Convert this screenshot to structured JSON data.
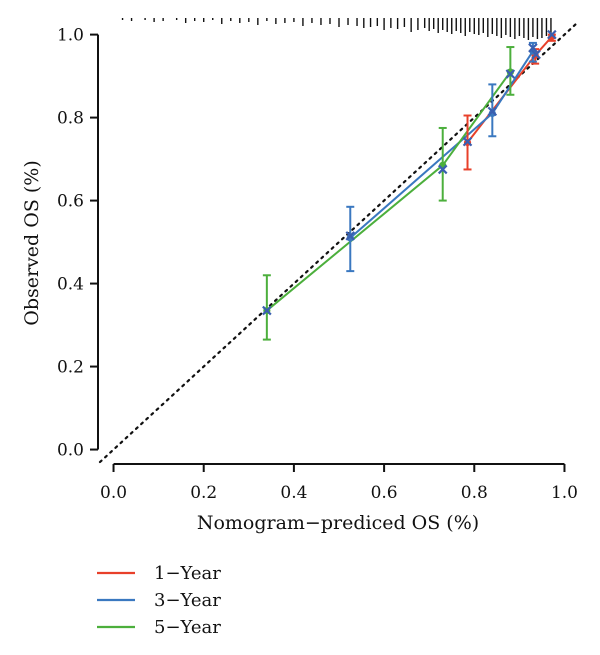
{
  "chart_data": {
    "type": "line",
    "xlabel": "Nomogram−prediced OS (%)",
    "ylabel": "Observed OS (%)",
    "xlim": [
      -0.03,
      1.03
    ],
    "ylim": [
      -0.03,
      1.04
    ],
    "x_ticks": [
      "0.0",
      "0.2",
      "0.4",
      "0.6",
      "0.8",
      "1.0"
    ],
    "y_ticks": [
      "0.0",
      "0.2",
      "0.4",
      "0.6",
      "0.8",
      "1.0"
    ],
    "grid": false,
    "legend_position": "bottom-left",
    "reference_line": {
      "style": "dotted",
      "from": [
        -0.03,
        -0.03
      ],
      "to": [
        1.03,
        1.03
      ],
      "color": "#111111"
    },
    "series": [
      {
        "name": "1−Year",
        "color": "#e8402a",
        "points": [
          {
            "x": 0.785,
            "y": 0.74,
            "low": 0.675,
            "high": 0.805,
            "marker": "circle"
          },
          {
            "x": 0.935,
            "y": 0.95,
            "low": 0.93,
            "high": 0.965,
            "marker": "circle"
          },
          {
            "x": 0.972,
            "y": 0.995,
            "low": 0.985,
            "high": 1.0,
            "marker": "circle"
          }
        ]
      },
      {
        "name": "3−Year",
        "color": "#3a78c0",
        "points": [
          {
            "x": 0.525,
            "y": 0.51,
            "low": 0.43,
            "high": 0.585,
            "marker": "circle"
          },
          {
            "x": 0.84,
            "y": 0.81,
            "low": 0.755,
            "high": 0.88,
            "marker": "circle"
          },
          {
            "x": 0.93,
            "y": 0.96,
            "low": 0.935,
            "high": 0.98,
            "marker": "circle"
          }
        ]
      },
      {
        "name": "5−Year",
        "color": "#4caf3c",
        "points": [
          {
            "x": 0.34,
            "y": 0.335,
            "low": 0.265,
            "high": 0.42,
            "marker": "circle"
          },
          {
            "x": 0.73,
            "y": 0.685,
            "low": 0.6,
            "high": 0.775,
            "marker": "circle"
          },
          {
            "x": 0.88,
            "y": 0.91,
            "low": 0.855,
            "high": 0.97,
            "marker": "circle"
          }
        ]
      }
    ],
    "crosses": [
      {
        "x": 0.34,
        "y": 0.335,
        "color": "#3a5fb0"
      },
      {
        "x": 0.525,
        "y": 0.515,
        "color": "#3a5fb0"
      },
      {
        "x": 0.73,
        "y": 0.675,
        "color": "#3a5fb0"
      },
      {
        "x": 0.785,
        "y": 0.742,
        "color": "#3a5fb0"
      },
      {
        "x": 0.84,
        "y": 0.815,
        "color": "#3a5fb0"
      },
      {
        "x": 0.88,
        "y": 0.905,
        "color": "#3a5fb0"
      },
      {
        "x": 0.93,
        "y": 0.968,
        "color": "#3a5fb0"
      },
      {
        "x": 0.937,
        "y": 0.952,
        "color": "#3a5fb0"
      },
      {
        "x": 0.972,
        "y": 1.0,
        "color": "#3a5fb0"
      }
    ],
    "rug_x": [
      0.02,
      0.04,
      0.07,
      0.09,
      0.11,
      0.14,
      0.16,
      0.18,
      0.2,
      0.22,
      0.24,
      0.26,
      0.28,
      0.3,
      0.32,
      0.34,
      0.36,
      0.38,
      0.4,
      0.42,
      0.44,
      0.46,
      0.48,
      0.5,
      0.52,
      0.54,
      0.555,
      0.57,
      0.585,
      0.6,
      0.615,
      0.63,
      0.645,
      0.66,
      0.675,
      0.69,
      0.7,
      0.71,
      0.72,
      0.73,
      0.74,
      0.75,
      0.76,
      0.77,
      0.78,
      0.79,
      0.8,
      0.81,
      0.82,
      0.83,
      0.84,
      0.85,
      0.86,
      0.87,
      0.88,
      0.89,
      0.9,
      0.91,
      0.92,
      0.93,
      0.94,
      0.95,
      0.96,
      0.97
    ],
    "rug_heights": [
      2,
      3,
      2,
      4,
      3,
      2,
      5,
      3,
      4,
      2,
      6,
      3,
      5,
      4,
      7,
      3,
      6,
      5,
      4,
      8,
      5,
      7,
      6,
      9,
      7,
      8,
      10,
      9,
      8,
      12,
      10,
      11,
      9,
      14,
      12,
      10,
      13,
      11,
      15,
      12,
      14,
      16,
      13,
      15,
      18,
      14,
      16,
      17,
      15,
      19,
      16,
      18,
      20,
      17,
      19,
      21,
      18,
      20,
      22,
      19,
      21,
      20,
      18,
      16
    ]
  }
}
